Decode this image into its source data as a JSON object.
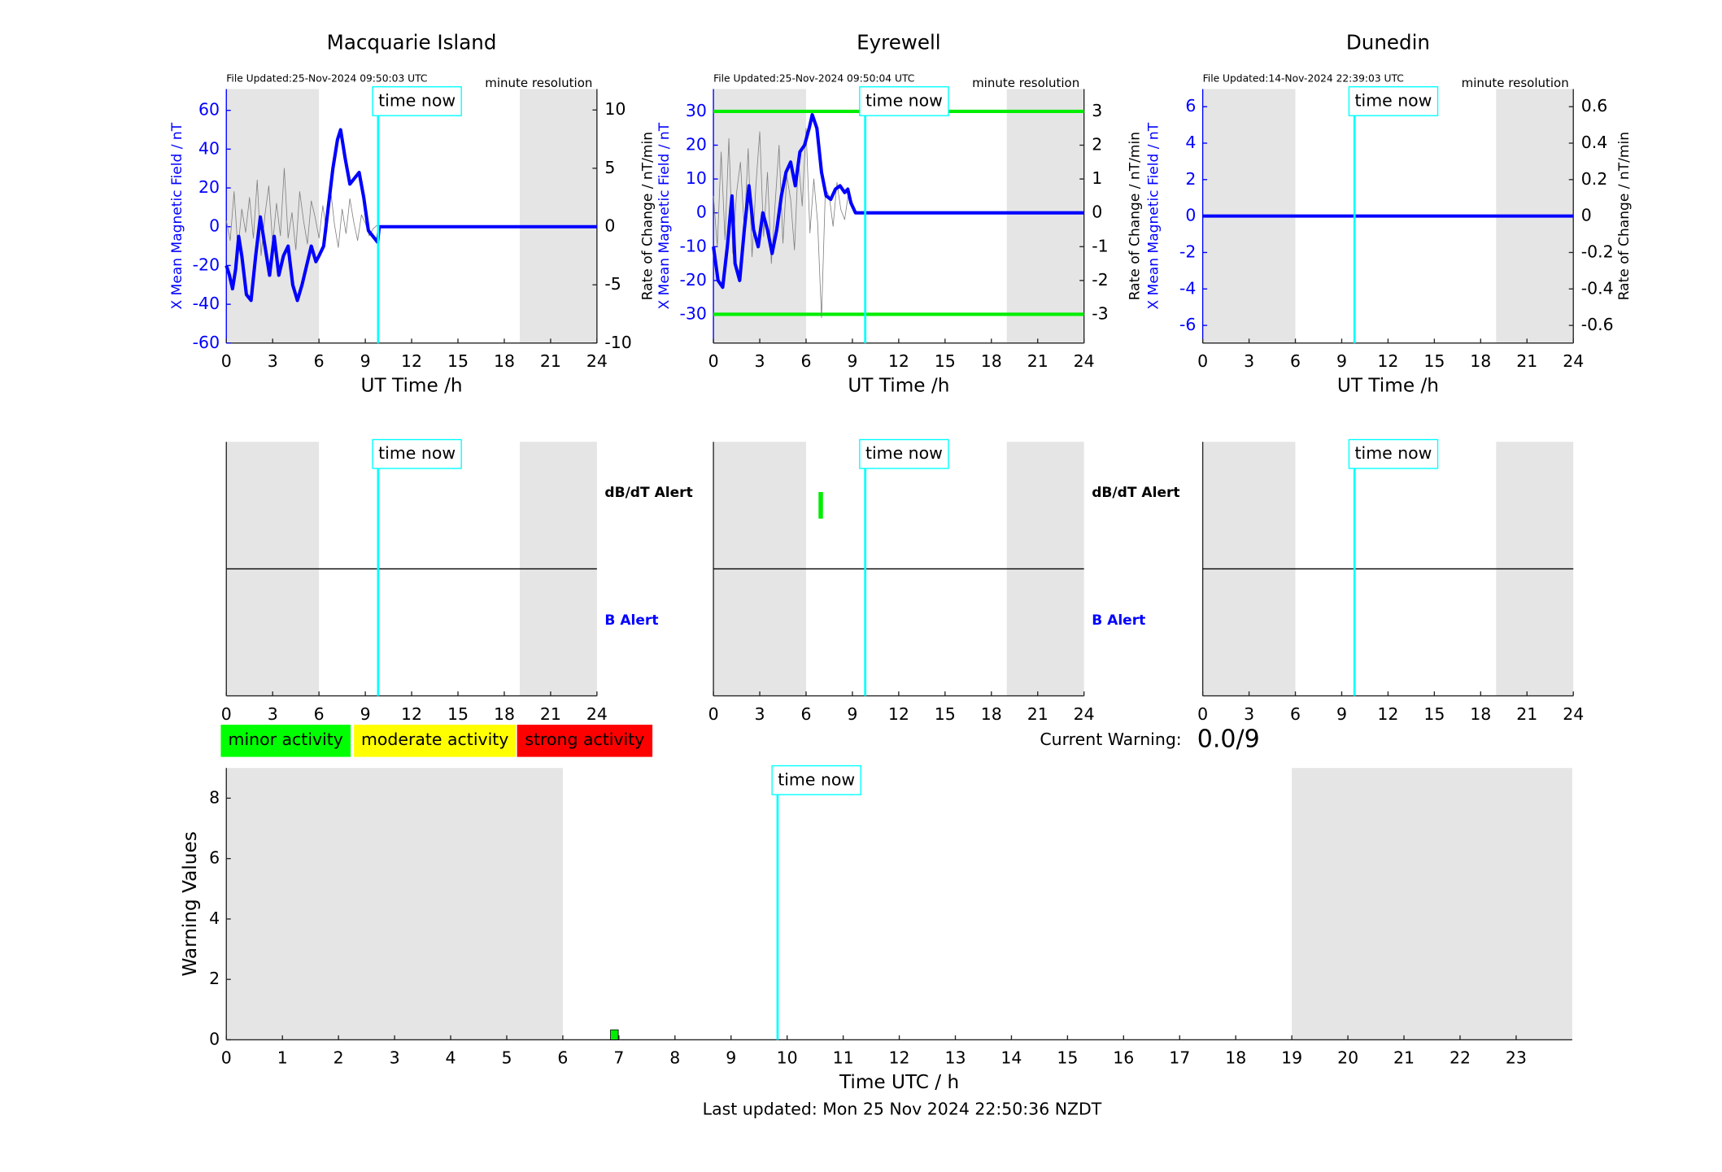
{
  "chart_data": [
    {
      "type": "line",
      "title": "Macquarie Island",
      "file_updated": "File Updated:25-Nov-2024 09:50:03 UTC",
      "resolution": "minute resolution",
      "xlabel": "UT Time /h",
      "ylabel": "X Mean Magnetic Field / nT",
      "y2label": "Rate of Change / nT/min",
      "y_color": "#0000ff",
      "xlim": [
        0,
        24
      ],
      "xticks": [
        0,
        3,
        6,
        9,
        12,
        15,
        18,
        21,
        24
      ],
      "ylim": [
        -60,
        71
      ],
      "yticks": [
        -60,
        -40,
        -20,
        0,
        20,
        40,
        60
      ],
      "y2lim": [
        -10,
        11.8
      ],
      "y2ticks": [
        -10,
        -5,
        0,
        5,
        10
      ],
      "shaded": [
        [
          0,
          6
        ],
        [
          19,
          24
        ]
      ],
      "time_now": {
        "value": 9.83,
        "label": "time now"
      },
      "series": [
        {
          "color": "#808080",
          "axis": "y2",
          "x": [
            0,
            0.25,
            0.5,
            0.75,
            1,
            1.25,
            1.5,
            1.75,
            2,
            2.25,
            2.5,
            2.75,
            3,
            3.25,
            3.5,
            3.75,
            4,
            4.25,
            4.5,
            4.75,
            5,
            5.25,
            5.5,
            5.75,
            6,
            6.25,
            6.5,
            6.75,
            7,
            7.25,
            7.5,
            7.75,
            8,
            8.25,
            8.5,
            8.75,
            9,
            9.25,
            9.5,
            9.75
          ],
          "values": [
            0.5,
            -1.2,
            3,
            -2,
            1.5,
            -0.5,
            2.5,
            -1,
            4,
            -2.5,
            1,
            3.5,
            -1.5,
            2,
            -0.8,
            5,
            -1,
            1.2,
            -2,
            3,
            0.5,
            -1.5,
            2.2,
            0.8,
            -1,
            1.8,
            -0.5,
            3.2,
            0.2,
            -1.8,
            1.5,
            -0.6,
            2.4,
            0.4,
            -1.2,
            1,
            0.3,
            -0.8,
            -0.2,
            0.1
          ]
        },
        {
          "color": "#0000ff",
          "x": [
            0,
            0.2,
            0.4,
            0.6,
            0.8,
            1,
            1.3,
            1.6,
            1.9,
            2.2,
            2.5,
            2.8,
            3.1,
            3.4,
            3.7,
            4,
            4.3,
            4.6,
            4.9,
            5.2,
            5.5,
            5.8,
            6,
            6.3,
            6.6,
            6.9,
            7.2,
            7.4,
            7.7,
            8,
            8.3,
            8.6,
            8.9,
            9.2,
            9.5,
            9.8,
            9.9,
            24
          ],
          "values": [
            -20,
            -25,
            -32,
            -22,
            -5,
            -15,
            -35,
            -38,
            -15,
            5,
            -10,
            -25,
            -5,
            -25,
            -15,
            -10,
            -30,
            -38,
            -30,
            -20,
            -10,
            -18,
            -15,
            -10,
            10,
            30,
            45,
            50,
            35,
            22,
            25,
            28,
            15,
            -2,
            -5,
            -8,
            0,
            0
          ]
        }
      ]
    },
    {
      "type": "line",
      "title": "Eyrewell",
      "file_updated": "File Updated:25-Nov-2024 09:50:04 UTC",
      "resolution": "minute resolution",
      "xlabel": "UT Time /h",
      "ylabel": "X Mean Magnetic Field / nT",
      "y2label": "Rate of Change / nT/min",
      "y_color": "#0000ff",
      "xlim": [
        0,
        24
      ],
      "xticks": [
        0,
        3,
        6,
        9,
        12,
        15,
        18,
        21,
        24
      ],
      "ylim": [
        -38.5,
        36.6
      ],
      "yticks": [
        -30,
        -20,
        -10,
        0,
        10,
        20,
        30
      ],
      "y2lim": [
        -3.85,
        3.66
      ],
      "y2ticks": [
        -3,
        -2,
        -1,
        0,
        1,
        2,
        3
      ],
      "shaded": [
        [
          0,
          6
        ],
        [
          19,
          24
        ]
      ],
      "time_now": {
        "value": 9.83,
        "label": "time now"
      },
      "series": [
        {
          "color": "#00ee00",
          "x": [
            0,
            24
          ],
          "values": [
            30,
            30
          ]
        },
        {
          "color": "#00ee00",
          "x": [
            0,
            24
          ],
          "values": [
            -30,
            -30
          ]
        },
        {
          "color": "#808080",
          "axis": "y2",
          "x": [
            0,
            0.25,
            0.5,
            0.75,
            1,
            1.25,
            1.5,
            1.75,
            2,
            2.25,
            2.5,
            2.75,
            3,
            3.25,
            3.5,
            3.75,
            4,
            4.25,
            4.5,
            4.75,
            5,
            5.25,
            5.5,
            5.75,
            6,
            6.25,
            6.5,
            6.75,
            7,
            7.25,
            7.5,
            7.75,
            8,
            8.25,
            8.5,
            8.75,
            9
          ],
          "values": [
            0.5,
            -1,
            1.8,
            -0.8,
            2.2,
            -1.2,
            0.6,
            1.5,
            -0.5,
            1.9,
            -1.3,
            0.8,
            2.4,
            -0.7,
            1.2,
            -1.5,
            0.3,
            2,
            -0.9,
            1.1,
            0.4,
            -1.1,
            1.6,
            0.2,
            2.5,
            -0.6,
            1,
            -0.3,
            -3.1,
            0.7,
            0.5,
            -0.4,
            0.9,
            0.1,
            -0.2,
            0.6,
            0.3
          ]
        },
        {
          "color": "#0000ff",
          "x": [
            0,
            0.3,
            0.6,
            0.9,
            1.2,
            1.4,
            1.7,
            2,
            2.3,
            2.6,
            2.9,
            3.2,
            3.5,
            3.8,
            4.1,
            4.4,
            4.7,
            5,
            5.3,
            5.6,
            5.9,
            6.2,
            6.4,
            6.7,
            7,
            7.3,
            7.6,
            7.9,
            8.2,
            8.5,
            8.7,
            8.9,
            9.2,
            9.8,
            24
          ],
          "values": [
            -10,
            -20,
            -22,
            -10,
            5,
            -15,
            -20,
            -5,
            8,
            -5,
            -10,
            0,
            -5,
            -12,
            -5,
            5,
            12,
            15,
            8,
            18,
            20,
            25,
            29,
            25,
            12,
            5,
            4,
            7,
            8,
            6,
            7,
            3,
            0,
            0,
            0
          ]
        }
      ]
    },
    {
      "type": "line",
      "title": "Dunedin",
      "file_updated": "File Updated:14-Nov-2024 22:39:03 UTC",
      "resolution": "minute resolution",
      "xlabel": "UT Time /h",
      "ylabel": "X Mean Magnetic Field / nT",
      "y2label": "Rate of Change / nT/min",
      "y_color": "#0000ff",
      "xlim": [
        0,
        24
      ],
      "xticks": [
        0,
        3,
        6,
        9,
        12,
        15,
        18,
        21,
        24
      ],
      "ylim": [
        -6.97,
        6.97
      ],
      "yticks": [
        -6,
        -4,
        -2,
        0,
        2,
        4,
        6
      ],
      "y2lim": [
        -0.697,
        0.697
      ],
      "y2ticks": [
        -0.6,
        -0.4,
        -0.2,
        0,
        0.2,
        0.4,
        0.6
      ],
      "shaded": [
        [
          0,
          6
        ],
        [
          19,
          24
        ]
      ],
      "time_now": {
        "value": 9.83,
        "label": "time now"
      },
      "series": [
        {
          "color": "#0000ff",
          "x": [
            0,
            24
          ],
          "values": [
            0,
            0
          ]
        }
      ]
    },
    {
      "type": "alert",
      "upper_label": "dB/dT Alert",
      "lower_label": "B Alert",
      "xlim": [
        0,
        24
      ],
      "xticks": [
        0,
        3,
        6,
        9,
        12,
        15,
        18,
        21,
        24
      ],
      "ylim": [
        0,
        4
      ],
      "shaded": [
        [
          0,
          6
        ],
        [
          19,
          24
        ]
      ],
      "time_now": {
        "value": 9.83,
        "label": "time now"
      },
      "series": []
    },
    {
      "type": "alert",
      "upper_label": "dB/dT Alert",
      "lower_label": "B Alert",
      "xlim": [
        0,
        24
      ],
      "xticks": [
        0,
        3,
        6,
        9,
        12,
        15,
        18,
        21,
        24
      ],
      "ylim": [
        0,
        4
      ],
      "shaded": [
        [
          0,
          6
        ],
        [
          19,
          24
        ]
      ],
      "time_now": {
        "value": 9.83,
        "label": "time now"
      },
      "series": [
        {
          "color": "#00ee00",
          "x": [
            6.95
          ],
          "values": [
            3
          ]
        }
      ]
    },
    {
      "type": "alert",
      "xlim": [
        0,
        24
      ],
      "xticks": [
        0,
        3,
        6,
        9,
        12,
        15,
        18,
        21,
        24
      ],
      "ylim": [
        0,
        4
      ],
      "shaded": [
        [
          0,
          6
        ],
        [
          19,
          24
        ]
      ],
      "time_now": {
        "value": 9.83,
        "label": "time now"
      },
      "series": []
    },
    {
      "type": "bar",
      "xlabel": "Time UTC / h",
      "ylabel": "Warning Values",
      "xlim": [
        0,
        24
      ],
      "xticks": [
        0,
        1,
        2,
        3,
        4,
        5,
        6,
        7,
        8,
        9,
        10,
        11,
        12,
        13,
        14,
        15,
        16,
        17,
        18,
        19,
        20,
        21,
        22,
        23
      ],
      "ylim": [
        0,
        9
      ],
      "yticks": [
        0,
        2,
        4,
        6,
        8
      ],
      "shaded": [
        [
          0,
          6
        ],
        [
          19,
          24
        ]
      ],
      "time_now": {
        "value": 9.83,
        "label": "time now"
      },
      "series": [
        {
          "color": "#00ee00",
          "x": [
            6.92
          ],
          "values": [
            0.33
          ]
        }
      ]
    }
  ],
  "legend_boxes": [
    {
      "label": "minor activity",
      "color": "#00ff00"
    },
    {
      "label": "moderate activity",
      "color": "#ffff00"
    },
    {
      "label": "strong activity",
      "color": "#ff0000"
    }
  ],
  "current_warning_label": "Current Warning:",
  "current_warning": "0.0/9",
  "footer": "Last updated: Mon 25 Nov 2024 22:50:36 NZDT"
}
